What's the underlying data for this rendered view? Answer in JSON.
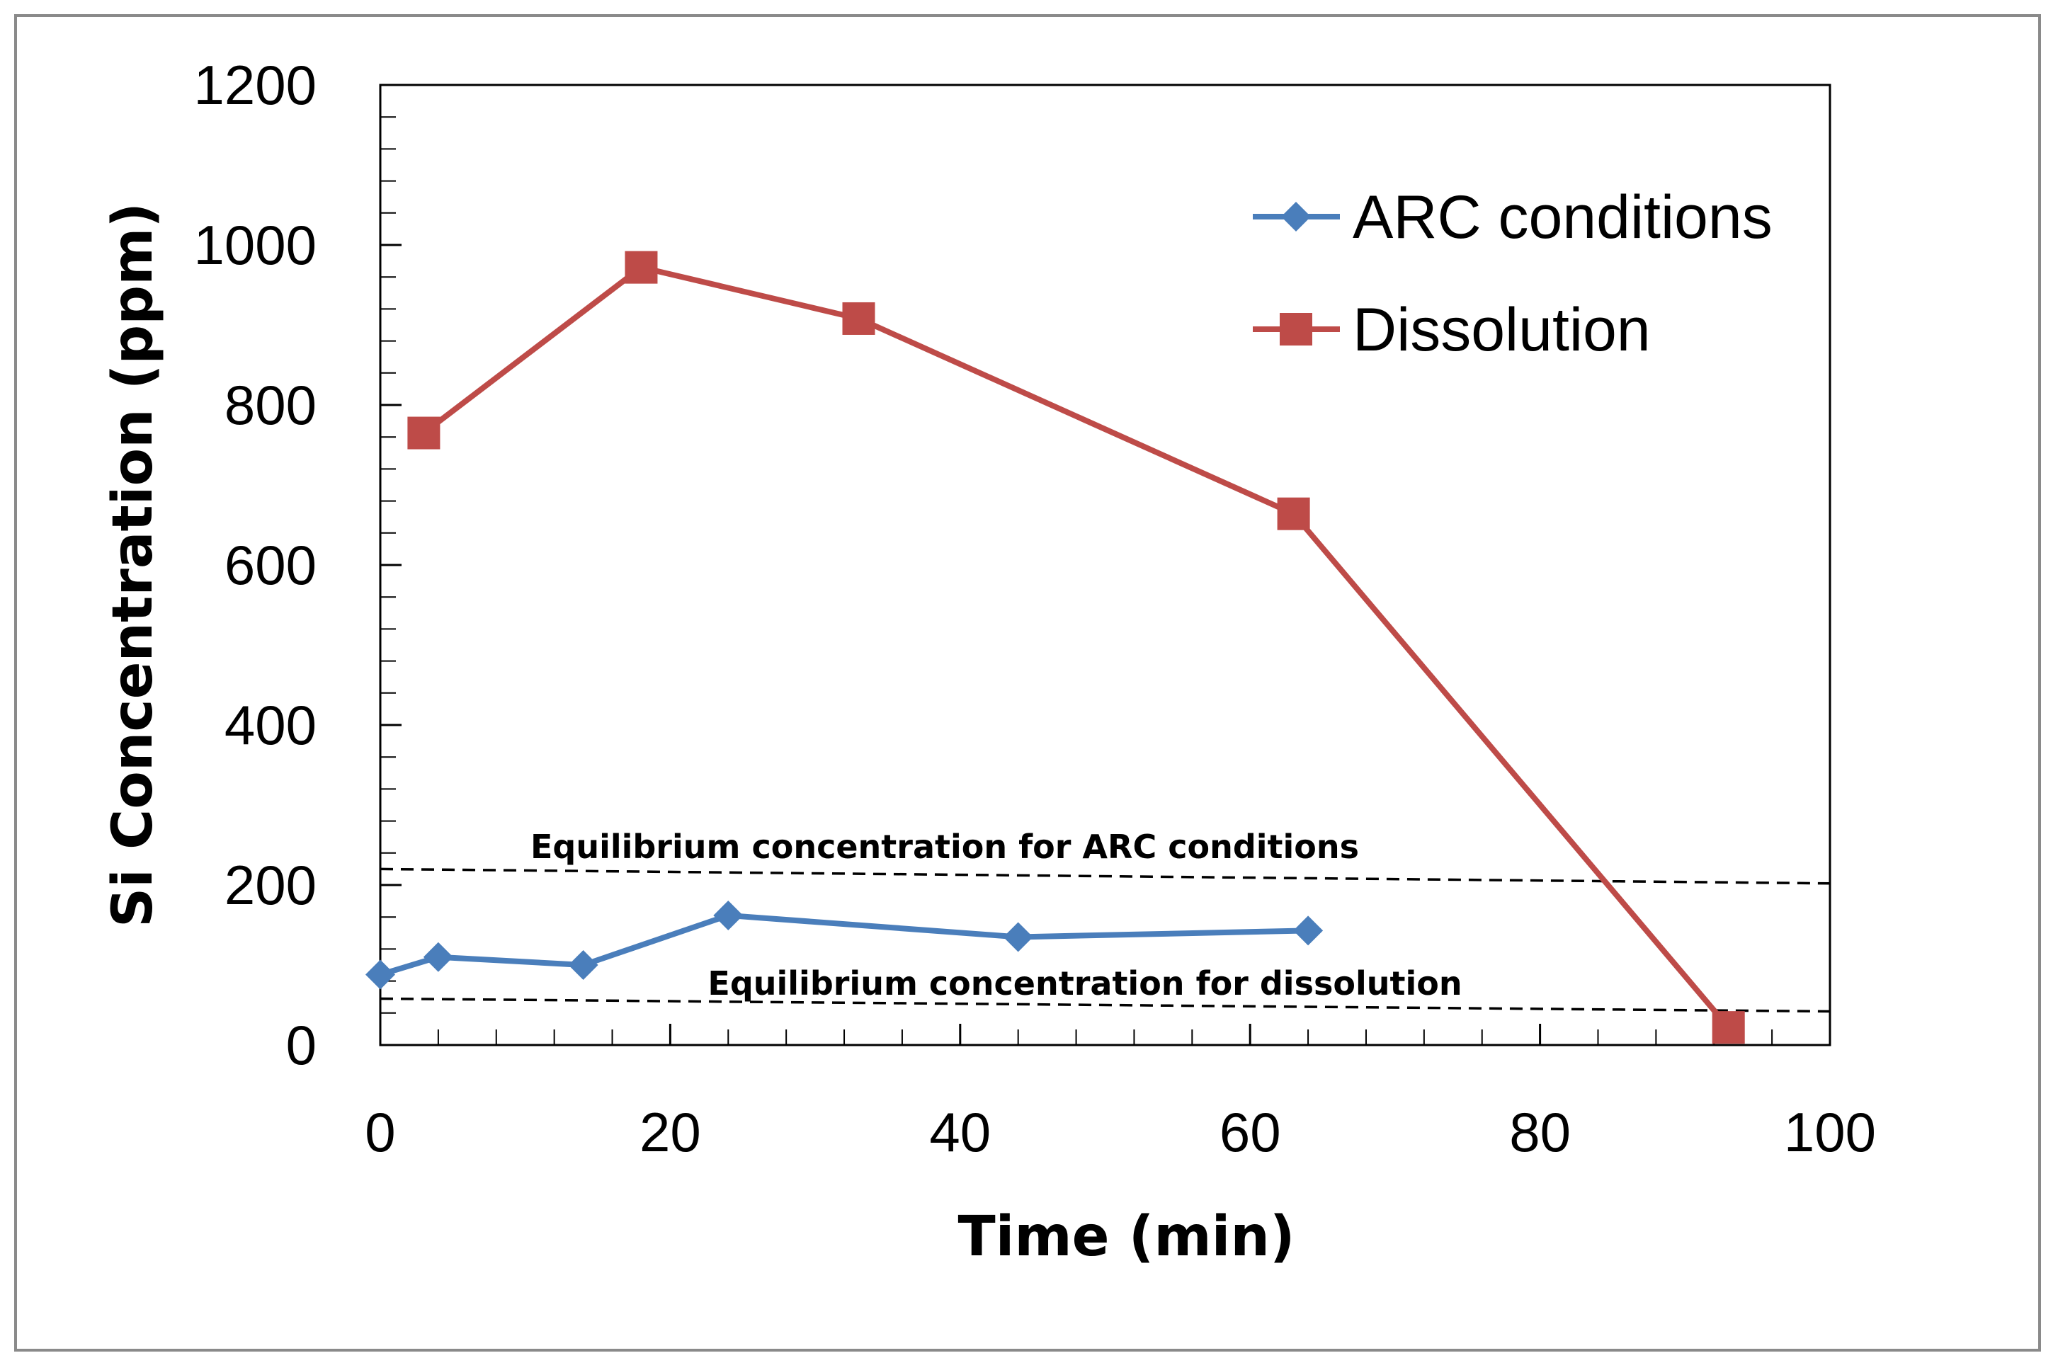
{
  "chart_data": {
    "type": "line",
    "title": "",
    "xlabel": "Time (min)",
    "ylabel": "Si Concentration (ppm)",
    "xlim": [
      0,
      100
    ],
    "ylim": [
      0,
      1200
    ],
    "x_ticks": [
      0,
      20,
      40,
      60,
      80,
      100
    ],
    "y_ticks": [
      0,
      200,
      400,
      600,
      800,
      1000,
      1200
    ],
    "x_tick_labels": [
      "0",
      "20",
      "40",
      "60",
      "80",
      "100"
    ],
    "y_tick_labels": [
      "0",
      "200",
      "400",
      "600",
      "800",
      "1000",
      "1200"
    ],
    "grid": false,
    "legend_position": "top-right",
    "series": [
      {
        "name": "ARC conditions",
        "color": "#4a7ebb",
        "marker": "diamond",
        "x": [
          0,
          4,
          14,
          24,
          44,
          64
        ],
        "y": [
          88,
          110,
          100,
          162,
          135,
          143
        ]
      },
      {
        "name": "Dissolution",
        "color": "#be4b48",
        "marker": "square",
        "x": [
          3,
          18,
          33,
          63,
          93
        ],
        "y": [
          765,
          972,
          908,
          664,
          22
        ]
      }
    ],
    "reference_lines": [
      {
        "label": "Equilibrium concentration for ARC conditions",
        "style": "dashed",
        "x": [
          0,
          100
        ],
        "y": [
          220,
          202
        ]
      },
      {
        "label": "Equilibrium concentration for dissolution",
        "style": "dashed",
        "x": [
          0,
          100
        ],
        "y": [
          58,
          42
        ]
      }
    ]
  }
}
